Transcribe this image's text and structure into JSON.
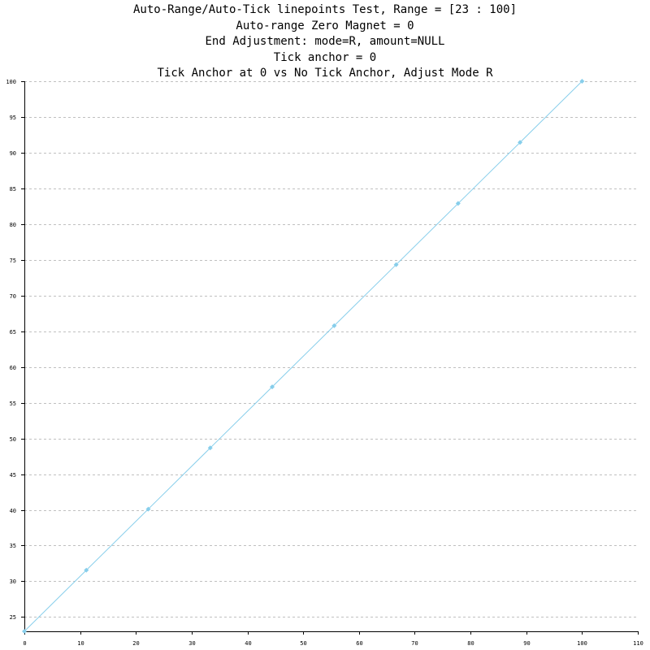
{
  "chart_data": {
    "type": "line",
    "titles": [
      "Auto-Range/Auto-Tick linepoints Test, Range = [23 : 100]",
      "Auto-range Zero Magnet = 0",
      "End Adjustment: mode=R, amount=NULL",
      "Tick anchor = 0",
      "Tick Anchor at 0 vs No Tick Anchor, Adjust Mode R"
    ],
    "xlabel": "",
    "ylabel": "",
    "xlim": [
      0,
      110
    ],
    "ylim": [
      23,
      100
    ],
    "x_ticks": [
      0,
      10,
      20,
      30,
      40,
      50,
      60,
      70,
      80,
      90,
      100,
      110
    ],
    "y_ticks": [
      25,
      30,
      35,
      40,
      45,
      50,
      55,
      60,
      65,
      70,
      75,
      80,
      85,
      90,
      95,
      100
    ],
    "grid": "horizontal dashed",
    "series": [
      {
        "color": "#87ceeb",
        "x": [
          0,
          11.11,
          22.22,
          33.33,
          44.44,
          55.56,
          66.67,
          77.78,
          88.89,
          100
        ],
        "y": [
          23,
          31.56,
          40.11,
          48.67,
          57.22,
          65.78,
          74.33,
          82.89,
          91.44,
          100
        ]
      }
    ]
  }
}
